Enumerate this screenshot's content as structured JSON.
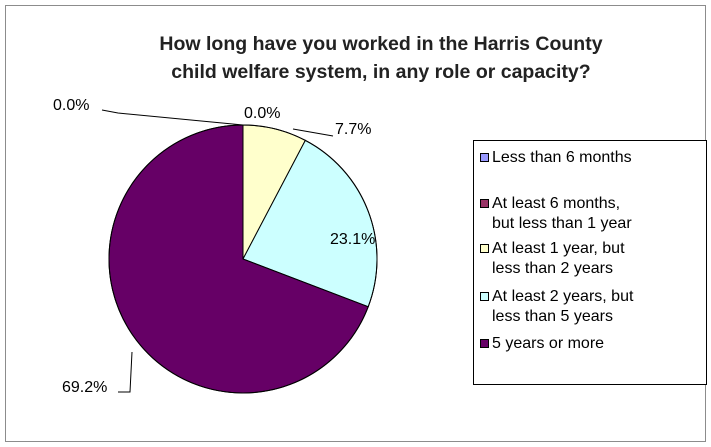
{
  "chart_data": {
    "type": "pie",
    "title_lines": [
      "How long have you worked in the Harris County",
      "child welfare system, in any role or capacity?"
    ],
    "categories": [
      "Less than 6 months",
      "At least 6 months,\nbut less than 1 year",
      "At least 1 year, but\nless than 2 years",
      "At least 2 years, but\nless than 5 years",
      "5 years or more"
    ],
    "values": [
      0.0,
      0.0,
      7.7,
      23.1,
      69.2
    ],
    "labels": [
      "0.0%",
      "0.0%",
      "7.7%",
      "23.1%",
      "69.2%"
    ],
    "colors": [
      "#9999ff",
      "#993366",
      "#ffffcc",
      "#ccffff",
      "#660066"
    ],
    "legend_position": "right"
  }
}
